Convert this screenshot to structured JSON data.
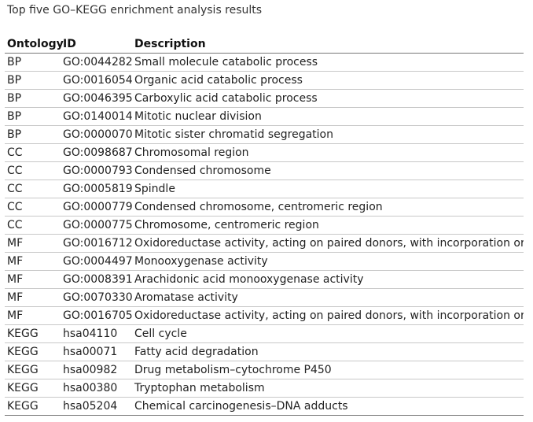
{
  "caption": "Top five GO–KEGG enrichment analysis results",
  "table": {
    "headers": [
      "Ontology",
      "ID",
      "Description"
    ],
    "rows": [
      [
        "BP",
        "GO:0044282",
        "Small molecule catabolic process"
      ],
      [
        "BP",
        "GO:0016054",
        "Organic acid catabolic process"
      ],
      [
        "BP",
        "GO:0046395",
        "Carboxylic acid catabolic process"
      ],
      [
        "BP",
        "GO:0140014",
        "Mitotic nuclear division"
      ],
      [
        "BP",
        "GO:0000070",
        "Mitotic sister chromatid segregation"
      ],
      [
        "CC",
        "GO:0098687",
        "Chromosomal region"
      ],
      [
        "CC",
        "GO:0000793",
        "Condensed chromosome"
      ],
      [
        "CC",
        "GO:0005819",
        "Spindle"
      ],
      [
        "CC",
        "GO:0000779",
        "Condensed chromosome, centromeric region"
      ],
      [
        "CC",
        "GO:0000775",
        "Chromosome, centromeric region"
      ],
      [
        "MF",
        "GO:0016712",
        "Oxidoreductase activity, acting on paired donors, with incorporation or"
      ],
      [
        "MF",
        "GO:0004497",
        "Monooxygenase activity"
      ],
      [
        "MF",
        "GO:0008391",
        "Arachidonic acid monooxygenase activity"
      ],
      [
        "MF",
        "GO:0070330",
        "Aromatase activity"
      ],
      [
        "MF",
        "GO:0016705",
        "Oxidoreductase activity, acting on paired donors, with incorporation or"
      ],
      [
        "KEGG",
        "hsa04110",
        "Cell cycle"
      ],
      [
        "KEGG",
        "hsa00071",
        "Fatty acid degradation"
      ],
      [
        "KEGG",
        "hsa00982",
        "Drug metabolism–cytochrome P450"
      ],
      [
        "KEGG",
        "hsa00380",
        "Tryptophan metabolism"
      ],
      [
        "KEGG",
        "hsa05204",
        "Chemical carcinogenesis–DNA adducts"
      ]
    ]
  }
}
